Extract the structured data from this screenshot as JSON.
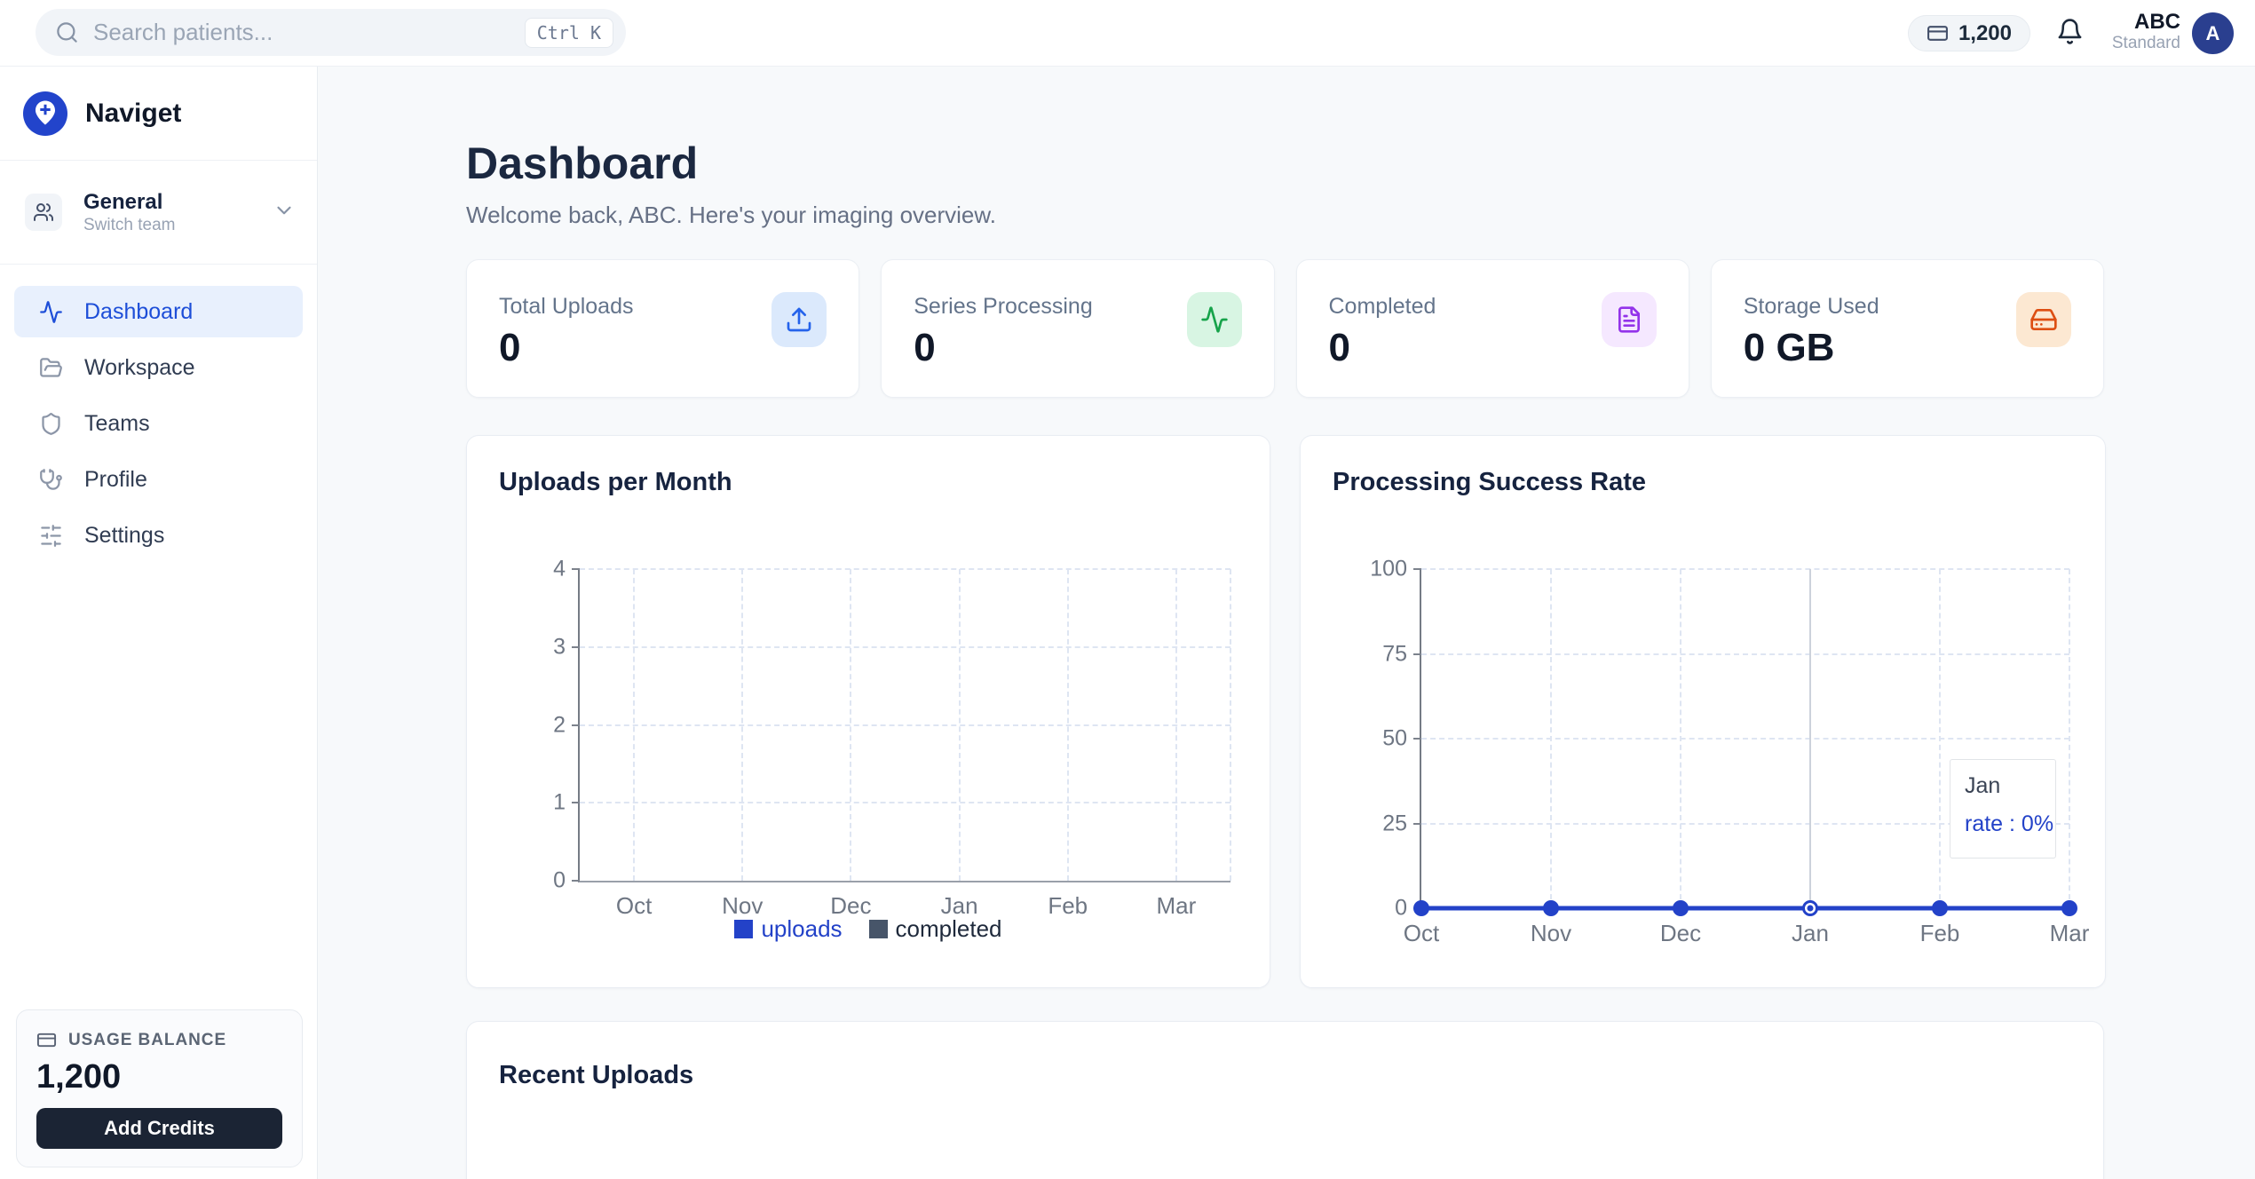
{
  "topbar": {
    "search_placeholder": "Search patients...",
    "shortcut": "Ctrl K",
    "credits": "1,200",
    "user_name": "ABC",
    "user_plan": "Standard",
    "avatar_initial": "A"
  },
  "sidebar": {
    "brand": "Naviget",
    "team": {
      "name": "General",
      "subtitle": "Switch team"
    },
    "items": [
      {
        "label": "Dashboard",
        "icon": "activity-icon",
        "active": true
      },
      {
        "label": "Workspace",
        "icon": "folder-open-icon",
        "active": false
      },
      {
        "label": "Teams",
        "icon": "shield-icon",
        "active": false
      },
      {
        "label": "Profile",
        "icon": "stethoscope-icon",
        "active": false
      },
      {
        "label": "Settings",
        "icon": "sliders-icon",
        "active": false
      }
    ],
    "usage": {
      "label": "USAGE BALANCE",
      "value": "1,200",
      "button": "Add Credits"
    }
  },
  "main": {
    "title": "Dashboard",
    "subtitle": "Welcome back, ABC. Here's your imaging overview.",
    "stats": [
      {
        "label": "Total Uploads",
        "value": "0",
        "icon": "upload-icon",
        "accent": "#2563eb",
        "accent_bg": "#dbe9fc"
      },
      {
        "label": "Series Processing",
        "value": "0",
        "icon": "activity-icon",
        "accent": "#16a34a",
        "accent_bg": "#d8f5e3"
      },
      {
        "label": "Completed",
        "value": "0",
        "icon": "file-text-icon",
        "accent": "#9333ea",
        "accent_bg": "#f5e8ff"
      },
      {
        "label": "Storage Used",
        "value": "0 GB",
        "icon": "hard-drive-icon",
        "accent": "#dd4e12",
        "accent_bg": "#fce8d2"
      }
    ],
    "recent_uploads_title": "Recent Uploads"
  },
  "chart_data": [
    {
      "type": "bar",
      "title": "Uploads per Month",
      "categories": [
        "Oct",
        "Nov",
        "Dec",
        "Jan",
        "Feb",
        "Mar"
      ],
      "x_mode": "band",
      "series": [
        {
          "name": "uploads",
          "color": "#2342c8",
          "label_color": "#2342c8",
          "values": [
            0,
            0,
            0,
            0,
            0,
            0
          ]
        },
        {
          "name": "completed",
          "color": "#475569",
          "label_color": "#1e293b",
          "values": [
            0,
            0,
            0,
            0,
            0,
            0
          ]
        }
      ],
      "ylim": [
        0,
        4
      ],
      "yticks": [
        0,
        1,
        2,
        3,
        4
      ],
      "grid": "dashed",
      "legend_position": "bottom"
    },
    {
      "type": "line",
      "title": "Processing Success Rate",
      "categories": [
        "Oct",
        "Nov",
        "Dec",
        "Jan",
        "Feb",
        "Mar"
      ],
      "x_mode": "point",
      "series": [
        {
          "name": "rate",
          "color": "#2342c8",
          "values": [
            0,
            0,
            0,
            0,
            0,
            0
          ]
        }
      ],
      "ylim": [
        0,
        100
      ],
      "yticks": [
        0,
        25,
        50,
        75,
        100
      ],
      "grid": "dashed",
      "hover": {
        "index": 3,
        "tooltip_title": "Jan",
        "tooltip_label": "rate : 0%"
      }
    }
  ]
}
